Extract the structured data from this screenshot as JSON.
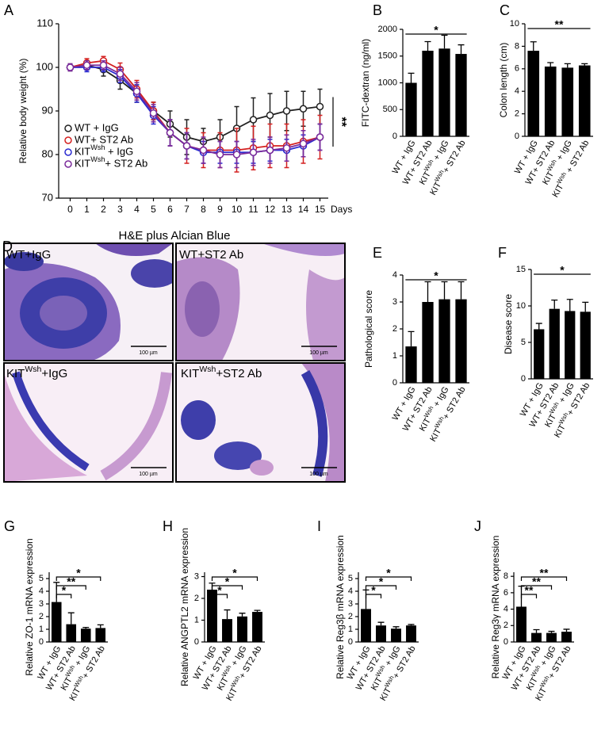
{
  "chart_data": [
    {
      "panel": "A",
      "type": "line",
      "y_label": "Relative body weight (%)",
      "x_label": "Days",
      "x": [
        0,
        1,
        2,
        3,
        4,
        5,
        6,
        7,
        8,
        9,
        10,
        11,
        12,
        13,
        14,
        15
      ],
      "xlim": [
        -0.5,
        15.5
      ],
      "xticks": [
        0,
        1,
        2,
        3,
        4,
        5,
        6,
        7,
        8,
        9,
        10,
        11,
        12,
        13,
        14,
        15
      ],
      "ylim": [
        70,
        110
      ],
      "yticks": [
        70,
        80,
        90,
        100,
        110
      ],
      "series": [
        {
          "name": "WT + IgG",
          "color": "#222222",
          "values": [
            100,
            100.5,
            99.5,
            97,
            94,
            90,
            87,
            84,
            83,
            84,
            86,
            88,
            89,
            90,
            90.5,
            91
          ],
          "errors": [
            0.8,
            1,
            1.5,
            2,
            2,
            2,
            3,
            4,
            3,
            4,
            5,
            5,
            5,
            4.5,
            4,
            4
          ]
        },
        {
          "name": "WT+ ST2 Ab",
          "color": "#d42020",
          "values": [
            100,
            101,
            101.5,
            99.5,
            95,
            90,
            85,
            82,
            81,
            81,
            81,
            81.5,
            82,
            82,
            83,
            84
          ],
          "errors": [
            0.8,
            1,
            1,
            1.5,
            2,
            2,
            3,
            4,
            4,
            4,
            5,
            5,
            5,
            5,
            5,
            5
          ]
        },
        {
          "name": "KITWsh + IgG",
          "color": "#2a2ad0",
          "values": [
            100,
            100,
            100,
            98,
            94,
            89,
            85,
            82,
            80.5,
            80.5,
            80.5,
            80.5,
            81,
            81,
            82,
            84
          ],
          "errors": [
            0.8,
            1,
            1,
            1.5,
            2,
            2,
            3,
            3,
            2.5,
            2.5,
            2.5,
            2.5,
            2.5,
            2.5,
            2.5,
            3
          ]
        },
        {
          "name": "KITWsh+ ST2 Ab",
          "color": "#7a2a9a",
          "values": [
            100,
            100.5,
            100.5,
            98.5,
            94.5,
            89.5,
            85,
            82,
            81,
            80,
            80,
            80.5,
            81,
            81.5,
            82.5,
            84
          ],
          "errors": [
            0.8,
            1,
            1,
            1.5,
            2,
            2,
            3,
            3,
            3,
            3,
            3,
            3,
            3,
            3,
            3,
            3
          ]
        }
      ],
      "significance": [
        {
          "label": "**"
        }
      ]
    },
    {
      "panel": "B",
      "type": "bar",
      "y_label": "FITC-dextran (ng/ml)",
      "color": "#000000",
      "categories": [
        "WT + IgG",
        "WT+ ST2 Ab",
        "KITWsh + IgG",
        "KITWsh+ ST2 Ab"
      ],
      "values": [
        1000,
        1600,
        1640,
        1540
      ],
      "errors": [
        180,
        170,
        250,
        170
      ],
      "ylim": [
        0,
        2000
      ],
      "yticks": [
        0,
        500,
        1000,
        1500,
        2000
      ],
      "significance": [
        {
          "label": "*",
          "from": 0,
          "to": 3
        }
      ]
    },
    {
      "panel": "C",
      "type": "bar",
      "y_label": "Colon length (cm)",
      "color": "#000000",
      "categories": [
        "WT + IgG",
        "WT+ ST2 Ab",
        "KITWsh + IgG",
        "KITWsh + ST2 Ab"
      ],
      "values": [
        7.6,
        6.2,
        6.1,
        6.3
      ],
      "errors": [
        0.8,
        0.35,
        0.35,
        0.15
      ],
      "ylim": [
        0,
        10
      ],
      "yticks": [
        0,
        2,
        4,
        6,
        8,
        10
      ],
      "significance": [
        {
          "label": "**",
          "from": 0,
          "to": 3
        }
      ]
    },
    {
      "panel": "E",
      "type": "bar",
      "y_label": "Pathological score",
      "color": "#000000",
      "categories": [
        "WT + IgG",
        "WT+ ST2 Ab",
        "KITWsh + IgG",
        "KITWsh+ ST2 Ab"
      ],
      "values": [
        1.35,
        3.0,
        3.1,
        3.1
      ],
      "errors": [
        0.55,
        0.75,
        0.65,
        0.65
      ],
      "ylim": [
        0,
        4
      ],
      "yticks": [
        0,
        1,
        2,
        3,
        4
      ],
      "significance": [
        {
          "label": "*",
          "from": 0,
          "to": 3
        }
      ]
    },
    {
      "panel": "F",
      "type": "bar",
      "y_label": "Disease score",
      "color": "#000000",
      "categories": [
        "WT + IgG",
        "WT+ ST2 Ab",
        "KITWsh + IgG",
        "KITWsh+ ST2 Ab"
      ],
      "values": [
        6.8,
        9.6,
        9.3,
        9.2
      ],
      "errors": [
        0.8,
        1.2,
        1.6,
        1.3
      ],
      "ylim": [
        0,
        15
      ],
      "yticks": [
        0,
        5,
        10,
        15
      ],
      "significance": [
        {
          "label": "*",
          "from": 0,
          "to": 3
        }
      ]
    },
    {
      "panel": "G",
      "type": "bar",
      "y_label": "Relative ZO-1 mRNA expression",
      "color": "#000000",
      "categories": [
        "WT + IgG",
        "WT+ ST2 Ab",
        "KITWsh + IgG",
        "KITWsh+ ST2 Ab"
      ],
      "values": [
        3.15,
        1.4,
        1.05,
        1.1
      ],
      "errors": [
        1.55,
        0.9,
        0.1,
        0.25
      ],
      "ylim": [
        0,
        5.5
      ],
      "yticks": [
        0,
        1,
        2,
        3,
        4,
        5
      ],
      "significance": [
        {
          "label": "*",
          "from": 0,
          "to": 1
        },
        {
          "label": "**",
          "from": 0,
          "to": 2
        },
        {
          "label": "*",
          "from": 0,
          "to": 3
        }
      ]
    },
    {
      "panel": "H",
      "type": "bar",
      "y_label": "Relative ANGPTL2 mRNA expression",
      "color": "#000000",
      "categories": [
        "WT + IgG",
        "WT+ ST2 Ab",
        "KITWsh + IgG",
        "KITWsh+ ST2 Ab"
      ],
      "values": [
        2.4,
        1.05,
        1.17,
        1.38
      ],
      "errors": [
        0.3,
        0.42,
        0.15,
        0.07
      ],
      "ylim": [
        0,
        3.2
      ],
      "yticks": [
        0,
        1,
        2,
        3
      ],
      "significance": [
        {
          "label": "*",
          "from": 0,
          "to": 1
        },
        {
          "label": "*",
          "from": 0,
          "to": 2
        },
        {
          "label": "*",
          "from": 0,
          "to": 3
        }
      ]
    },
    {
      "panel": "I",
      "type": "bar",
      "y_label": "Relative Reg3β mRNA expression",
      "color": "#000000",
      "categories": [
        "WT + IgG",
        "WT+ ST2 Ab",
        "KITWsh + IgG",
        "KITWsh+ ST2 Ab"
      ],
      "values": [
        2.6,
        1.3,
        1.05,
        1.3
      ],
      "errors": [
        1.5,
        0.25,
        0.15,
        0.08
      ],
      "ylim": [
        0,
        5.5
      ],
      "yticks": [
        0,
        1,
        2,
        3,
        4,
        5
      ],
      "significance": [
        {
          "label": "*",
          "from": 0,
          "to": 1
        },
        {
          "label": "*",
          "from": 0,
          "to": 2
        },
        {
          "label": "*",
          "from": 0,
          "to": 3
        }
      ]
    },
    {
      "panel": "J",
      "type": "bar",
      "y_label": "Relative Reg3γ mRNA expression",
      "color": "#000000",
      "categories": [
        "WT + IgG",
        "WT+ ST2 Ab",
        "KITWsh + IgG",
        "KITWsh+ ST2 Ab"
      ],
      "values": [
        4.3,
        1.1,
        1.1,
        1.25
      ],
      "errors": [
        2.5,
        0.4,
        0.2,
        0.3
      ],
      "ylim": [
        0,
        8.5
      ],
      "yticks": [
        0,
        2,
        4,
        6,
        8
      ],
      "significance": [
        {
          "label": "**",
          "from": 0,
          "to": 1
        },
        {
          "label": "**",
          "from": 0,
          "to": 2
        },
        {
          "label": "**",
          "from": 0,
          "to": 3
        }
      ]
    }
  ],
  "histology": {
    "panel": "D",
    "title": "H&E plus Alcian Blue",
    "images": [
      {
        "label": "WT+IgG",
        "scale_bar": "100 µm"
      },
      {
        "label": "WT+ST2 Ab",
        "scale_bar": "100 µm"
      },
      {
        "label": "KITWsh+IgG",
        "scale_bar": "100 µm"
      },
      {
        "label": "KITWsh+ST2 Ab",
        "scale_bar": "100 µm"
      }
    ]
  }
}
